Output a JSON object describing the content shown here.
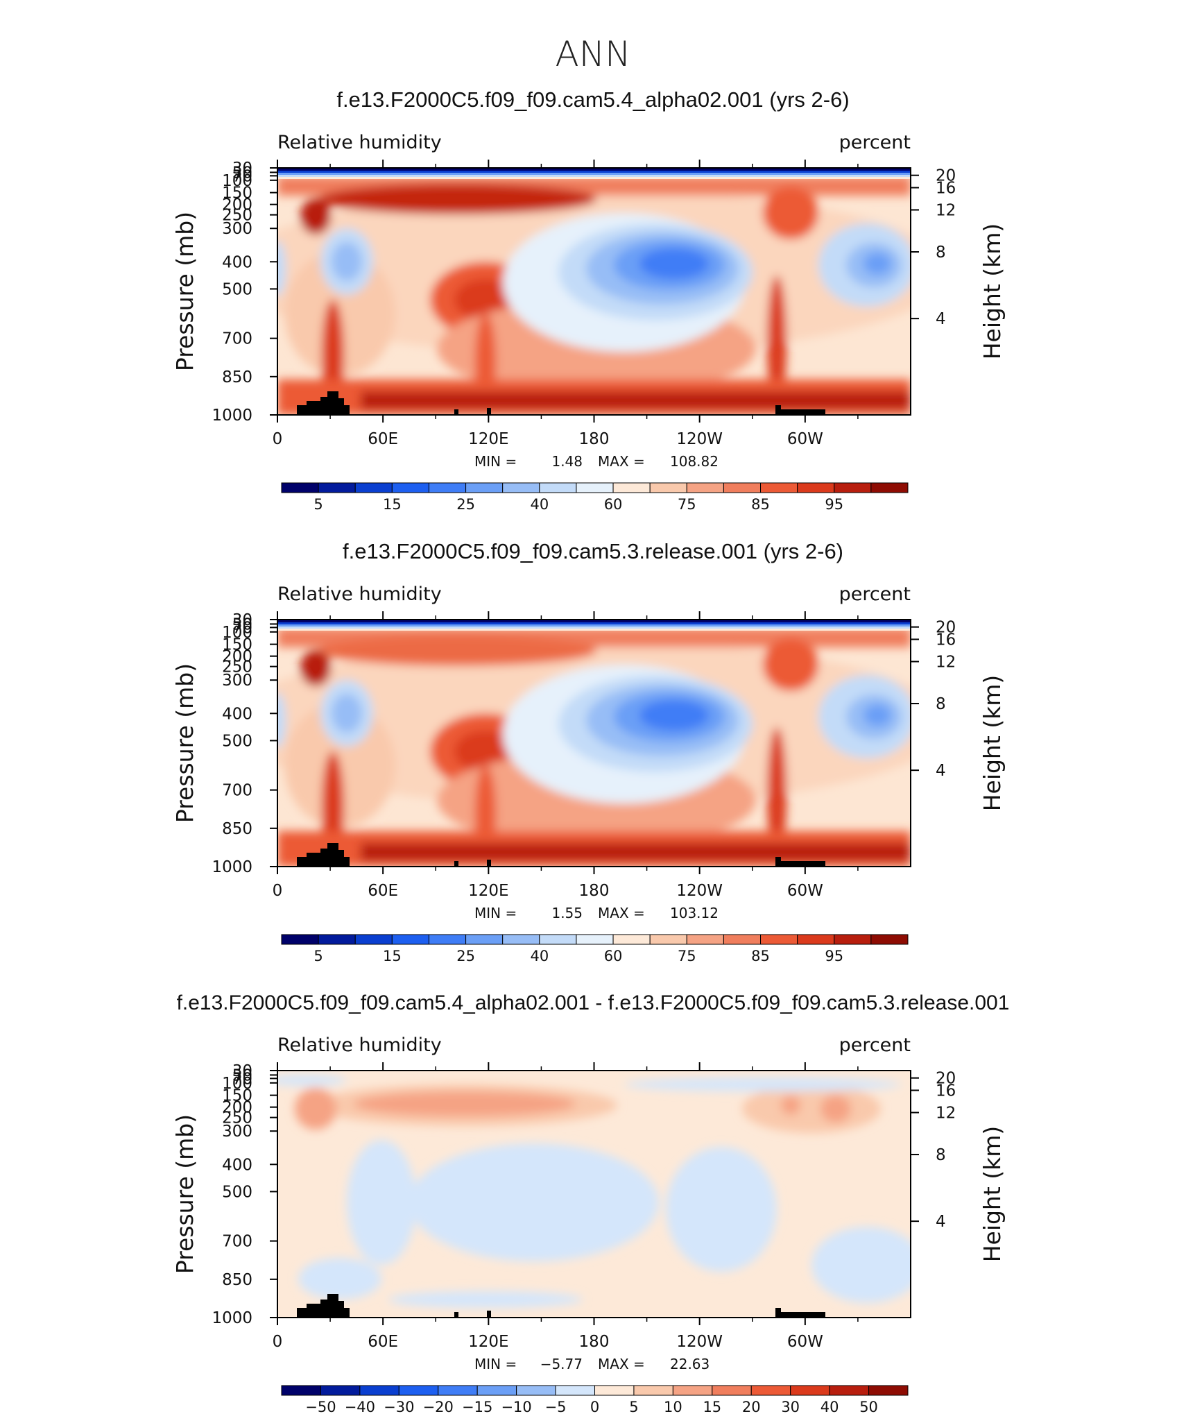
{
  "figure_title": "ANN",
  "chart_data": [
    {
      "type": "contour",
      "panel": "model",
      "title": "f.e13.F2000C5.f09_f09.cam5.4_alpha02.001 (yrs 2-6)",
      "variable": "Relative humidity",
      "units": "percent",
      "xlabel": "",
      "ylabel": "Pressure (mb)",
      "ylabel_right": "Height (km)",
      "x_ticks": [
        "0",
        "60E",
        "120E",
        "180",
        "120W",
        "60W"
      ],
      "y_ticks": [
        "30",
        "50",
        "70",
        "100",
        "150",
        "200",
        "250",
        "300",
        "400",
        "500",
        "700",
        "850",
        "1000"
      ],
      "y_ticks_right": [
        "20",
        "16",
        "12",
        "8",
        "4"
      ],
      "min_label": "MIN =",
      "min_value": "1.48",
      "max_label": "MAX =",
      "max_value": "108.82",
      "colorbar_labels": [
        "5",
        "15",
        "25",
        "40",
        "60",
        "75",
        "85",
        "95"
      ],
      "colorbar_colors": [
        "#00016a",
        "#021b9c",
        "#0a3fd0",
        "#1d5ff0",
        "#3f7df6",
        "#6b9ff6",
        "#97bdf6",
        "#c3dbf8",
        "#e6f1fb",
        "#fde9d8",
        "#f9c9ac",
        "#f5a384",
        "#f07e5d",
        "#ec5a36",
        "#db3a1c",
        "#b81e0e",
        "#8e0c03"
      ]
    },
    {
      "type": "contour",
      "panel": "control",
      "title": "f.e13.F2000C5.f09_f09.cam5.3.release.001 (yrs 2-6)",
      "variable": "Relative humidity",
      "units": "percent",
      "xlabel": "",
      "ylabel": "Pressure (mb)",
      "ylabel_right": "Height (km)",
      "x_ticks": [
        "0",
        "60E",
        "120E",
        "180",
        "120W",
        "60W"
      ],
      "y_ticks": [
        "30",
        "50",
        "70",
        "100",
        "150",
        "200",
        "250",
        "300",
        "400",
        "500",
        "700",
        "850",
        "1000"
      ],
      "y_ticks_right": [
        "20",
        "16",
        "12",
        "8",
        "4"
      ],
      "min_label": "MIN =",
      "min_value": "1.55",
      "max_label": "MAX =",
      "max_value": "103.12",
      "colorbar_labels": [
        "5",
        "15",
        "25",
        "40",
        "60",
        "75",
        "85",
        "95"
      ],
      "colorbar_colors": [
        "#00016a",
        "#021b9c",
        "#0a3fd0",
        "#1d5ff0",
        "#3f7df6",
        "#6b9ff6",
        "#97bdf6",
        "#c3dbf8",
        "#e6f1fb",
        "#fde9d8",
        "#f9c9ac",
        "#f5a384",
        "#f07e5d",
        "#ec5a36",
        "#db3a1c",
        "#b81e0e",
        "#8e0c03"
      ]
    },
    {
      "type": "contour",
      "panel": "difference",
      "title": "f.e13.F2000C5.f09_f09.cam5.4_alpha02.001 - f.e13.F2000C5.f09_f09.cam5.3.release.001",
      "variable": "Relative humidity",
      "units": "percent",
      "xlabel": "",
      "ylabel": "Pressure (mb)",
      "ylabel_right": "Height (km)",
      "x_ticks": [
        "0",
        "60E",
        "120E",
        "180",
        "120W",
        "60W"
      ],
      "y_ticks": [
        "30",
        "50",
        "70",
        "100",
        "150",
        "200",
        "250",
        "300",
        "400",
        "500",
        "700",
        "850",
        "1000"
      ],
      "y_ticks_right": [
        "20",
        "16",
        "12",
        "8",
        "4"
      ],
      "min_label": "MIN =",
      "min_value": "−5.77",
      "max_label": "MAX =",
      "max_value": "22.63",
      "colorbar_labels": [
        "−50",
        "−40",
        "−30",
        "−20",
        "−15",
        "−10",
        "−5",
        "0",
        "5",
        "10",
        "15",
        "20",
        "30",
        "40",
        "50"
      ],
      "colorbar_colors": [
        "#00016a",
        "#021b9c",
        "#0a3fd0",
        "#1d5ff0",
        "#3f7df6",
        "#6b9ff6",
        "#97bdf6",
        "#d4e6fb",
        "#fde9d8",
        "#f9c9ac",
        "#f5a384",
        "#f07e5d",
        "#ec5a36",
        "#db3a1c",
        "#b81e0e",
        "#8e0c03"
      ]
    }
  ]
}
